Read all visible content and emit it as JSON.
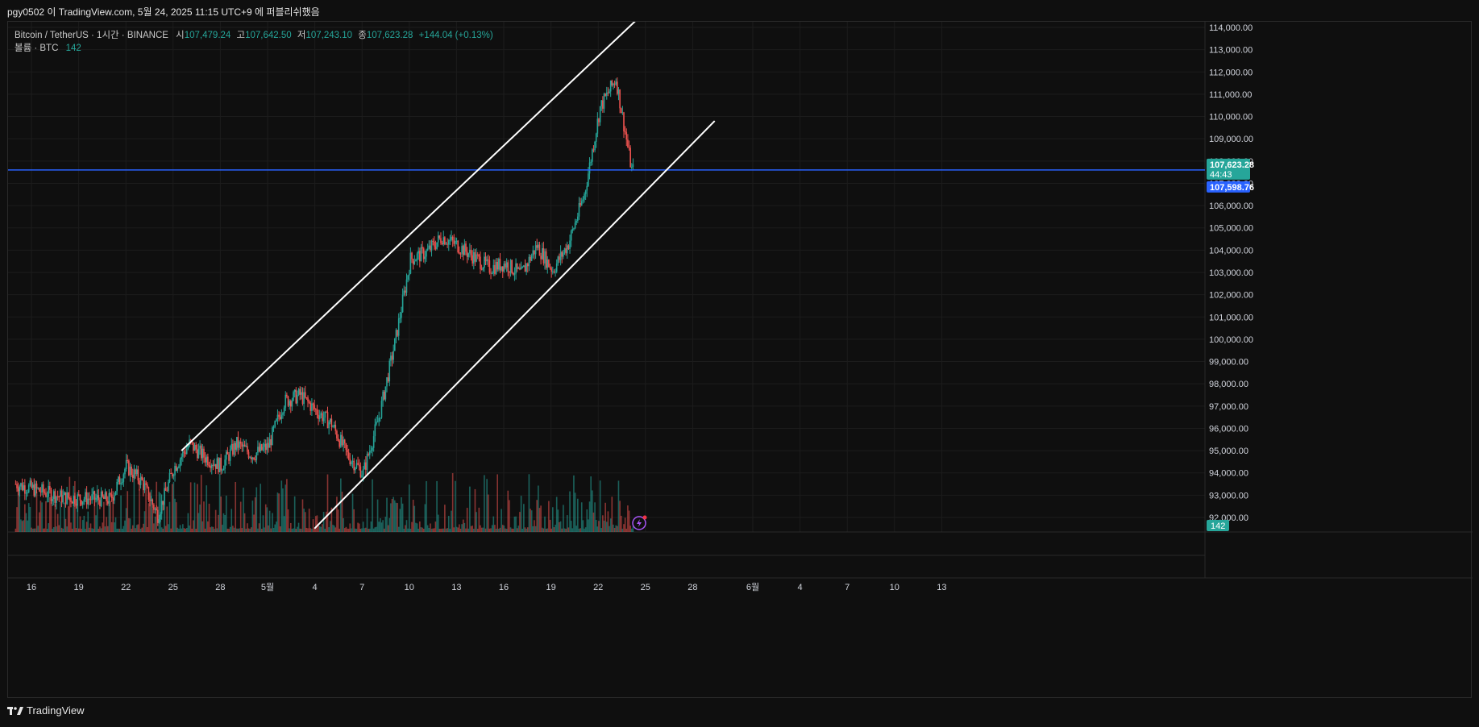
{
  "caption": "pgy0502 이 TradingView.com, 5월 24, 2025 11:15 UTC+9 에 퍼블리쉬했음",
  "footer": {
    "brand": "TradingView"
  },
  "legend": {
    "symbol": "Bitcoin / TetherUS · 1시간 · BINANCE",
    "open_label": "시",
    "open": "107,479.24",
    "high_label": "고",
    "high": "107,642.50",
    "low_label": "저",
    "low": "107,243.10",
    "close_label": "종",
    "close": "107,623.28",
    "change": "+144.04 (+0.13%)",
    "volume_label": "볼륨 · BTC",
    "volume": "142"
  },
  "price_tags": {
    "last_price": "107,623.28",
    "countdown": "44:43",
    "line_price": "107,598.76",
    "volume_tag": "142"
  },
  "colors": {
    "up": "#26a69a",
    "down": "#ef5350",
    "line": "#2962ff",
    "channel": "#ffffff",
    "bg": "#0f0f0f"
  },
  "chart_data": {
    "type": "candlestick",
    "symbol": "Bitcoin / TetherUS",
    "interval": "1시간",
    "exchange": "BINANCE",
    "ylim": [
      91500,
      114300
    ],
    "y_ticks": [
      "92,000.00",
      "93,000.00",
      "94,000.00",
      "95,000.00",
      "96,000.00",
      "97,000.00",
      "98,000.00",
      "99,000.00",
      "100,000.00",
      "101,000.00",
      "102,000.00",
      "103,000.00",
      "104,000.00",
      "105,000.00",
      "106,000.00",
      "107,000.00",
      "108,000.00",
      "109,000.00",
      "110,000.00",
      "111,000.00",
      "112,000.00",
      "113,000.00",
      "114,000.00"
    ],
    "x_ticks": [
      "16",
      "19",
      "22",
      "25",
      "28",
      "5월",
      "4",
      "7",
      "10",
      "13",
      "16",
      "19",
      "22",
      "25",
      "28",
      "6월",
      "4",
      "7",
      "10",
      "13"
    ],
    "horizontal_line": 107598.76,
    "channel": {
      "upper": [
        {
          "date": "04-25 12:00",
          "price": 95000
        },
        {
          "date": "05-24 06:00",
          "price": 114300
        }
      ],
      "lower": [
        {
          "date": "05-03 22:00",
          "price": 91500
        },
        {
          "date": "05-29 06:00",
          "price": 109800
        }
      ]
    },
    "price_path": [
      {
        "date": "04-15",
        "price": 93500
      },
      {
        "date": "04-18",
        "price": 92900
      },
      {
        "date": "04-21",
        "price": 92800
      },
      {
        "date": "04-22",
        "price": 94300
      },
      {
        "date": "04-23",
        "price": 93600
      },
      {
        "date": "04-24",
        "price": 92100
      },
      {
        "date": "04-25",
        "price": 94200
      },
      {
        "date": "04-26",
        "price": 95300
      },
      {
        "date": "04-27",
        "price": 94700
      },
      {
        "date": "04-28",
        "price": 94300
      },
      {
        "date": "04-29",
        "price": 95300
      },
      {
        "date": "04-30",
        "price": 94800
      },
      {
        "date": "05-01",
        "price": 95200
      },
      {
        "date": "05-02",
        "price": 97200
      },
      {
        "date": "05-03",
        "price": 97500
      },
      {
        "date": "05-04",
        "price": 96800
      },
      {
        "date": "05-05",
        "price": 96200
      },
      {
        "date": "05-06",
        "price": 94800
      },
      {
        "date": "05-07",
        "price": 94000
      },
      {
        "date": "05-08",
        "price": 96500
      },
      {
        "date": "05-09",
        "price": 99800
      },
      {
        "date": "05-10",
        "price": 103600
      },
      {
        "date": "05-11",
        "price": 103900
      },
      {
        "date": "05-12",
        "price": 104600
      },
      {
        "date": "05-13",
        "price": 104200
      },
      {
        "date": "05-14",
        "price": 103700
      },
      {
        "date": "05-15",
        "price": 103200
      },
      {
        "date": "05-16",
        "price": 103400
      },
      {
        "date": "05-17",
        "price": 102900
      },
      {
        "date": "05-18",
        "price": 104200
      },
      {
        "date": "05-19",
        "price": 103100
      },
      {
        "date": "05-20",
        "price": 104300
      },
      {
        "date": "05-21",
        "price": 106500
      },
      {
        "date": "05-22",
        "price": 110400
      },
      {
        "date": "05-23",
        "price": 111700
      },
      {
        "date": "05-24",
        "price": 107600
      }
    ],
    "volume_last": 142
  }
}
